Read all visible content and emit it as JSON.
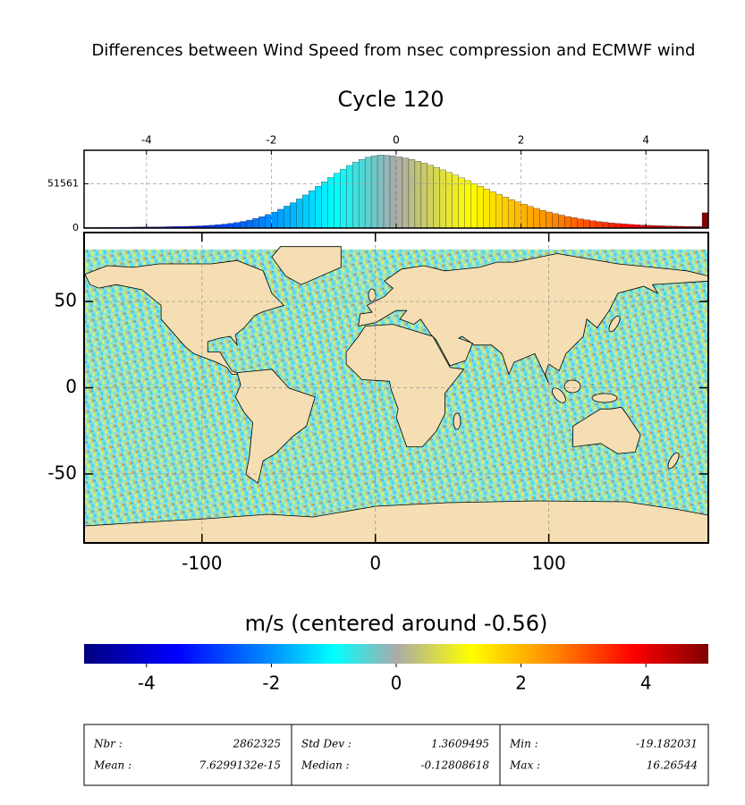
{
  "header": {
    "title": "Differences between Wind Speed from nsec compression and ECMWF wind",
    "subtitle": "Cycle 120"
  },
  "chart_data": [
    {
      "type": "histogram",
      "bins": [
        -5,
        -4.9,
        -4.8,
        -4.7,
        -4.6,
        -4.5,
        -4.4,
        -4.3,
        -4.2,
        -4.1,
        -4,
        -3.9,
        -3.8,
        -3.7,
        -3.6,
        -3.5,
        -3.4,
        -3.3,
        -3.2,
        -3.1,
        -3,
        -2.9,
        -2.8,
        -2.7,
        -2.6,
        -2.5,
        -2.4,
        -2.3,
        -2.2,
        -2.1,
        -2,
        -1.9,
        -1.8,
        -1.7,
        -1.6,
        -1.5,
        -1.4,
        -1.3,
        -1.2,
        -1.1,
        -1,
        -0.9,
        -0.8,
        -0.7,
        -0.6,
        -0.5,
        -0.4,
        -0.3,
        -0.2,
        -0.1,
        0,
        0.1,
        0.2,
        0.3,
        0.4,
        0.5,
        0.6,
        0.7,
        0.8,
        0.9,
        1,
        1.1,
        1.2,
        1.3,
        1.4,
        1.5,
        1.6,
        1.7,
        1.8,
        1.9,
        2,
        2.1,
        2.2,
        2.3,
        2.4,
        2.5,
        2.6,
        2.7,
        2.8,
        2.9,
        3,
        3.1,
        3.2,
        3.3,
        3.4,
        3.5,
        3.6,
        3.7,
        3.8,
        3.9,
        4,
        4.1,
        4.2,
        4.3,
        4.4,
        4.5,
        4.6,
        4.7,
        4.8,
        4.9,
        5
      ],
      "values": [
        759,
        798,
        839,
        882,
        927,
        975,
        1025,
        1078,
        1149,
        1216,
        1290,
        1372,
        1467,
        1577,
        1706,
        1861,
        2052,
        2285,
        2576,
        2933,
        3381,
        3941,
        4631,
        5478,
        6510,
        7778,
        9300,
        11129,
        13296,
        15779,
        18640,
        21895,
        25536,
        29556,
        33908,
        38588,
        43493,
        48587,
        53739,
        58851,
        63861,
        68560,
        72873,
        76672,
        79862,
        82346,
        84056,
        84960,
        84624,
        83893,
        82839,
        81469,
        79790,
        77836,
        75625,
        73177,
        70518,
        67682,
        64699,
        61591,
        58403,
        55153,
        51878,
        48614,
        45372,
        42182,
        39073,
        36062,
        33154,
        30374,
        27738,
        25243,
        22900,
        20714,
        18686,
        16809,
        15088,
        13517,
        12081,
        10785,
        9617,
        8575,
        7635,
        6807,
        6073,
        5427,
        4851,
        4357,
        3917,
        3534,
        3200,
        2915,
        2661,
        2448,
        2254,
        2091,
        1944,
        1824,
        1712,
        17900
      ],
      "xlim": [
        -5,
        5
      ],
      "xticks": [
        -4,
        -2,
        0,
        2,
        4
      ],
      "ylim": [
        0,
        90500
      ],
      "yticks": [
        0,
        51561
      ],
      "grid": true
    },
    {
      "type": "map",
      "xlim": [
        -168,
        192
      ],
      "xticks": [
        -100,
        0,
        100
      ],
      "ylim": [
        -90,
        90
      ],
      "yticks": [
        -50,
        0,
        50
      ],
      "grid": true
    },
    {
      "type": "colorbar",
      "title": "m/s (centered around -0.56)",
      "xlim": [
        -5,
        5
      ],
      "xticks": [
        -4,
        -2,
        0,
        2,
        4
      ],
      "colormap": [
        {
          "value": -5,
          "color": "#00007f"
        },
        {
          "value": -3.5,
          "color": "#0000ff"
        },
        {
          "value": -2,
          "color": "#0090ff"
        },
        {
          "value": -1,
          "color": "#00ffff"
        },
        {
          "value": 0,
          "color": "#aaaaaa"
        },
        {
          "value": 1.2,
          "color": "#ffff00"
        },
        {
          "value": 2.6,
          "color": "#ff8000"
        },
        {
          "value": 3.8,
          "color": "#ff0000"
        },
        {
          "value": 5,
          "color": "#7f0000"
        }
      ]
    }
  ],
  "stats": {
    "cells": [
      [
        [
          "Nbr :",
          "2862325"
        ],
        [
          "Mean :",
          "7.6299132e-15"
        ]
      ],
      [
        [
          "Std Dev :",
          "1.3609495"
        ],
        [
          "Median :",
          "-0.12808618"
        ]
      ],
      [
        [
          "Min :",
          "-19.182031"
        ],
        [
          "Max :",
          "16.26544"
        ]
      ]
    ]
  }
}
